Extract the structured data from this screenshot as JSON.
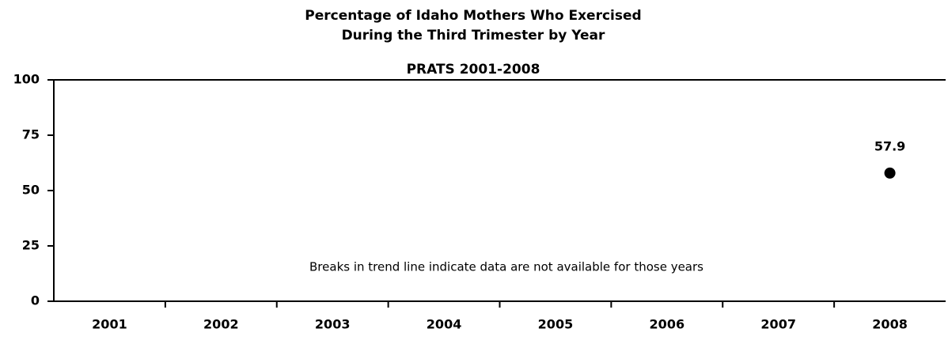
{
  "chart_data": {
    "type": "line",
    "title": [
      "Percentage of Idaho Mothers Who Exercised",
      "During the Third Trimester by Year",
      "PRATS 2001-2008"
    ],
    "annotation": "Breaks in trend line indicate data are not available for those years",
    "categories": [
      "2001",
      "2002",
      "2003",
      "2004",
      "2005",
      "2006",
      "2007",
      "2008"
    ],
    "series": [
      {
        "color": "#000000",
        "values": [
          null,
          null,
          null,
          null,
          null,
          null,
          null,
          57.9
        ]
      }
    ],
    "ylim": [
      0,
      100
    ],
    "yticks": [
      0,
      25,
      50,
      75,
      100
    ]
  }
}
